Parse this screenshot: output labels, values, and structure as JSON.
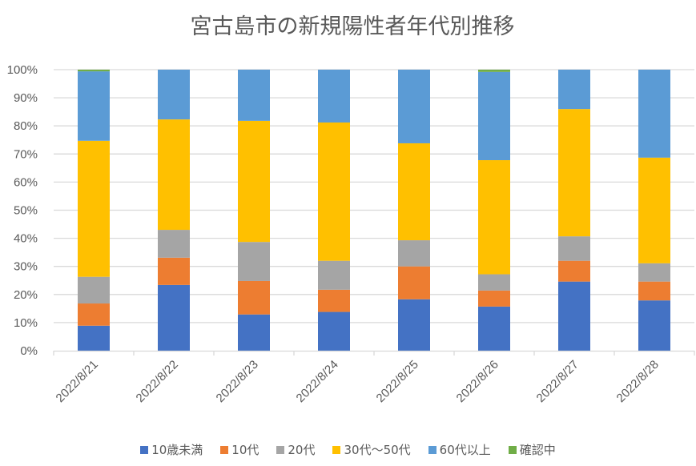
{
  "chart_data": {
    "type": "bar",
    "stacked": true,
    "title": "宮古島市の新規陽性者年代別推移",
    "xlabel": "",
    "ylabel": "",
    "ylim": [
      0,
      100
    ],
    "y_ticks": [
      "0%",
      "10%",
      "20%",
      "30%",
      "40%",
      "50%",
      "60%",
      "70%",
      "80%",
      "90%",
      "100%"
    ],
    "grid": true,
    "legend_position": "bottom",
    "categories": [
      "2022/8/21",
      "2022/8/22",
      "2022/8/23",
      "2022/8/24",
      "2022/8/25",
      "2022/8/26",
      "2022/8/27",
      "2022/8/28"
    ],
    "series": [
      {
        "name": "10歳未満",
        "color": "#4472C4",
        "values": [
          8.9,
          23.4,
          12.9,
          13.8,
          18.3,
          15.7,
          24.6,
          17.9
        ]
      },
      {
        "name": "10代",
        "color": "#ED7D31",
        "values": [
          7.9,
          9.7,
          11.9,
          7.9,
          11.7,
          5.7,
          7.4,
          6.7
        ]
      },
      {
        "name": "20代",
        "color": "#A5A5A5",
        "values": [
          9.5,
          9.9,
          13.9,
          10.3,
          9.3,
          5.8,
          8.7,
          6.5
        ]
      },
      {
        "name": "30代～50代",
        "color": "#FFC000",
        "values": [
          48.4,
          39.3,
          43.1,
          49.2,
          34.5,
          40.6,
          45.3,
          37.6
        ]
      },
      {
        "name": "60代以上",
        "color": "#5B9BD5",
        "values": [
          24.7,
          17.7,
          18.2,
          18.8,
          26.2,
          31.4,
          14.0,
          31.3
        ]
      },
      {
        "name": "確認中",
        "color": "#70AD47",
        "values": [
          0.6,
          0,
          0,
          0,
          0,
          0.8,
          0,
          0
        ]
      }
    ]
  }
}
